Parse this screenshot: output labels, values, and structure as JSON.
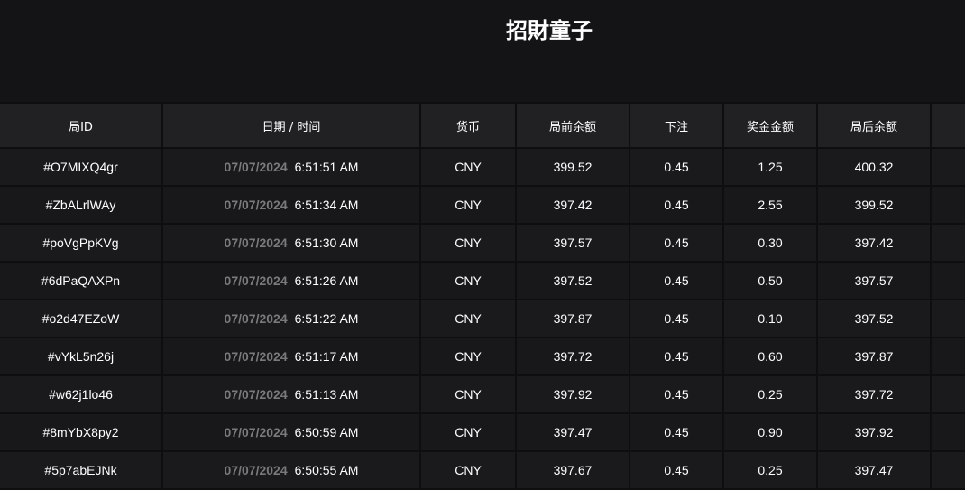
{
  "title": "招財童子",
  "columns": [
    "局ID",
    "日期 / 时间",
    "货币",
    "局前余额",
    "下注",
    "奖金金额",
    "局后余额",
    ""
  ],
  "rows": [
    {
      "id": "#O7MIXQ4gr",
      "date": "07/07/2024",
      "time": "6:51:51 AM",
      "currency": "CNY",
      "before": "399.52",
      "bet": "0.45",
      "prize": "1.25",
      "after": "400.32"
    },
    {
      "id": "#ZbALrlWAy",
      "date": "07/07/2024",
      "time": "6:51:34 AM",
      "currency": "CNY",
      "before": "397.42",
      "bet": "0.45",
      "prize": "2.55",
      "after": "399.52"
    },
    {
      "id": "#poVgPpKVg",
      "date": "07/07/2024",
      "time": "6:51:30 AM",
      "currency": "CNY",
      "before": "397.57",
      "bet": "0.45",
      "prize": "0.30",
      "after": "397.42"
    },
    {
      "id": "#6dPaQAXPn",
      "date": "07/07/2024",
      "time": "6:51:26 AM",
      "currency": "CNY",
      "before": "397.52",
      "bet": "0.45",
      "prize": "0.50",
      "after": "397.57"
    },
    {
      "id": "#o2d47EZoW",
      "date": "07/07/2024",
      "time": "6:51:22 AM",
      "currency": "CNY",
      "before": "397.87",
      "bet": "0.45",
      "prize": "0.10",
      "after": "397.52"
    },
    {
      "id": "#vYkL5n26j",
      "date": "07/07/2024",
      "time": "6:51:17 AM",
      "currency": "CNY",
      "before": "397.72",
      "bet": "0.45",
      "prize": "0.60",
      "after": "397.87"
    },
    {
      "id": "#w62j1lo46",
      "date": "07/07/2024",
      "time": "6:51:13 AM",
      "currency": "CNY",
      "before": "397.92",
      "bet": "0.45",
      "prize": "0.25",
      "after": "397.72"
    },
    {
      "id": "#8mYbX8py2",
      "date": "07/07/2024",
      "time": "6:50:59 AM",
      "currency": "CNY",
      "before": "397.47",
      "bet": "0.45",
      "prize": "0.90",
      "after": "397.92"
    },
    {
      "id": "#5p7abEJNk",
      "date": "07/07/2024",
      "time": "6:50:55 AM",
      "currency": "CNY",
      "before": "397.67",
      "bet": "0.45",
      "prize": "0.25",
      "after": "397.47"
    }
  ]
}
